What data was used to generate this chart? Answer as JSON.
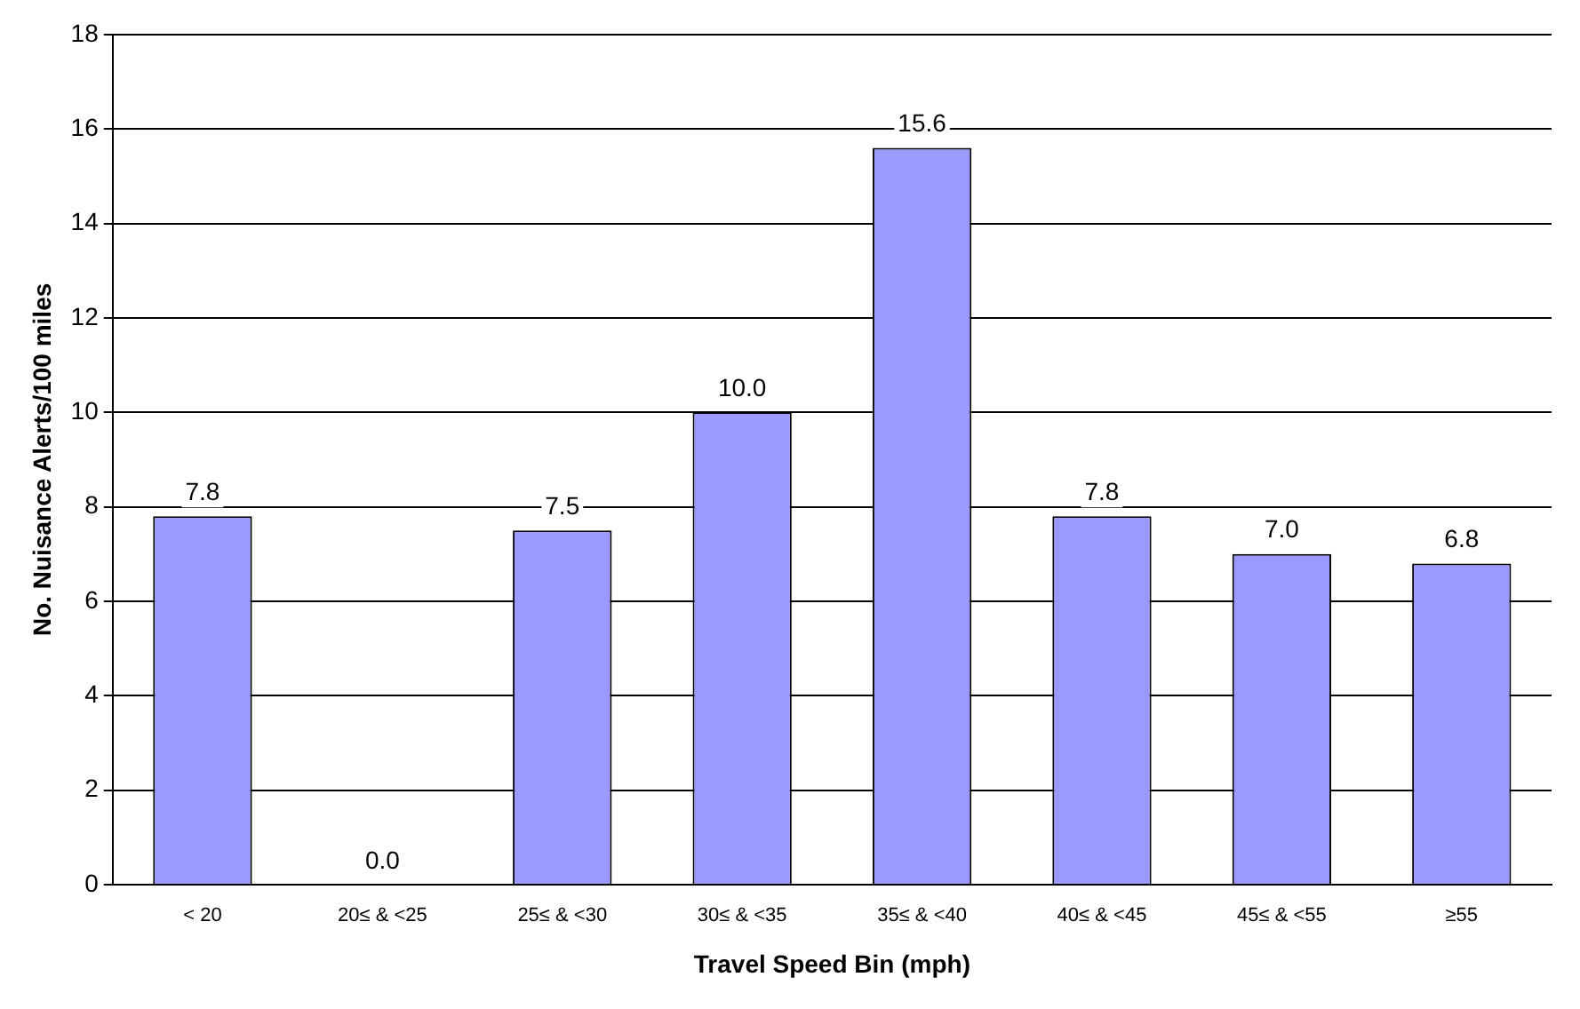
{
  "chart_data": {
    "type": "bar",
    "categories": [
      "< 20",
      "20≤ & <25",
      "25≤ & <30",
      "30≤ & <35",
      "35≤ & <40",
      "40≤ & <45",
      "45≤ & <55",
      "≥55"
    ],
    "values": [
      7.8,
      0.0,
      7.5,
      10.0,
      15.6,
      7.8,
      7.0,
      6.8
    ],
    "value_labels": [
      "7.8",
      "0.0",
      "7.5",
      "10.0",
      "15.6",
      "7.8",
      "7.0",
      "6.8"
    ],
    "color": "#9999ff",
    "xlabel": "Travel Speed Bin (mph)",
    "ylabel": "No. Nuisance Alerts/100 miles",
    "ylim": [
      0,
      18
    ],
    "yticks": [
      0,
      2,
      4,
      6,
      8,
      10,
      12,
      14,
      16,
      18
    ],
    "grid": "y",
    "legend": false
  }
}
